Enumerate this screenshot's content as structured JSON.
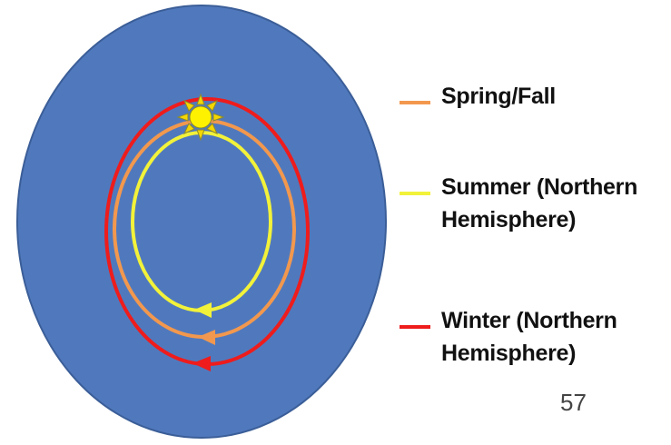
{
  "diagram": {
    "background_color": "#5079bd",
    "orbits": [
      {
        "season": "spring_fall",
        "color": "#f2984e"
      },
      {
        "season": "summer",
        "color": "#f2f23a"
      },
      {
        "season": "winter",
        "color": "#ee1c1c"
      }
    ],
    "sun_icon": "sun-icon",
    "arrow_icon": "arrowhead-icon"
  },
  "legend": {
    "items": [
      {
        "color": "#f2984e",
        "lines": [
          "Spring/Fall"
        ]
      },
      {
        "color": "#f2f23a",
        "lines": [
          "Summer (Northern",
          "Hemisphere)"
        ]
      },
      {
        "color": "#ee1c1c",
        "lines": [
          "Winter (Northern",
          "Hemisphere)"
        ]
      }
    ]
  },
  "page_number": "57"
}
